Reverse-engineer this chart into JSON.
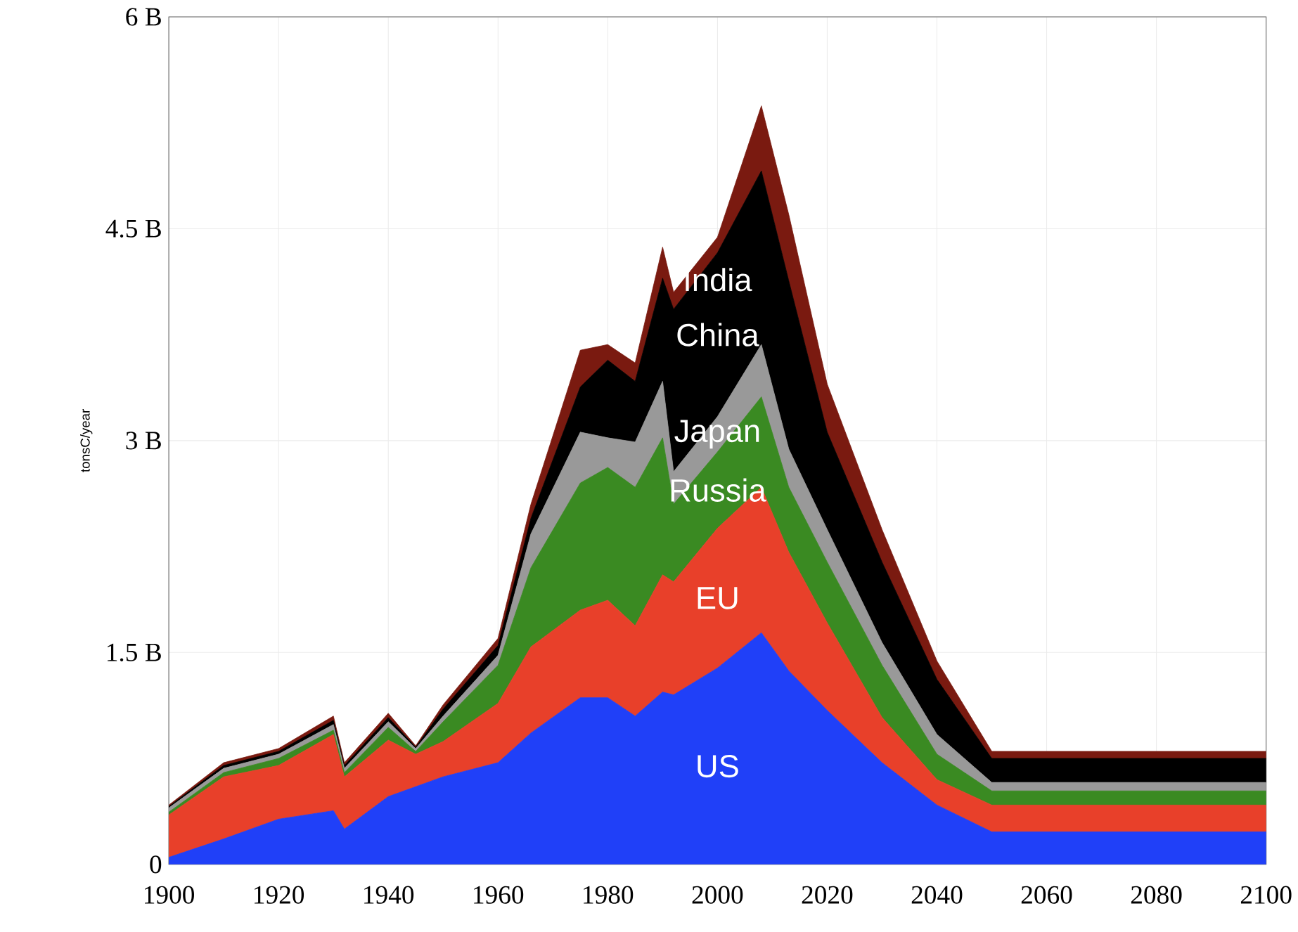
{
  "chart_data": {
    "type": "area",
    "stacked": true,
    "ylabel": "tonsC/year",
    "x": [
      1900,
      1910,
      1920,
      1930,
      1932,
      1940,
      1945,
      1950,
      1960,
      1966,
      1975,
      1980,
      1985,
      1990,
      1992,
      2000,
      2008,
      2013,
      2020,
      2030,
      2040,
      2050,
      2100
    ],
    "series": [
      {
        "name": "US",
        "color": "#2040f8",
        "values": [
          0.05,
          0.18,
          0.32,
          0.38,
          0.25,
          0.48,
          0.55,
          0.62,
          0.72,
          0.93,
          1.18,
          1.18,
          1.05,
          1.22,
          1.2,
          1.39,
          1.64,
          1.37,
          1.09,
          0.72,
          0.42,
          0.23,
          0.23
        ]
      },
      {
        "name": "EU",
        "color": "#e8402a",
        "values": [
          0.3,
          0.44,
          0.38,
          0.54,
          0.37,
          0.4,
          0.23,
          0.25,
          0.42,
          0.61,
          0.62,
          0.69,
          0.64,
          0.83,
          0.8,
          0.99,
          1.03,
          0.84,
          0.62,
          0.32,
          0.18,
          0.19,
          0.19
        ]
      },
      {
        "name": "Russia",
        "color": "#3a8a22",
        "values": [
          0.02,
          0.03,
          0.05,
          0.03,
          0.03,
          0.09,
          0.02,
          0.14,
          0.27,
          0.56,
          0.9,
          0.94,
          0.98,
          0.97,
          0.55,
          0.54,
          0.64,
          0.46,
          0.43,
          0.37,
          0.18,
          0.1,
          0.1
        ]
      },
      {
        "name": "Japan",
        "color": "#999999",
        "values": [
          0.03,
          0.03,
          0.03,
          0.04,
          0.03,
          0.04,
          0.02,
          0.04,
          0.07,
          0.24,
          0.36,
          0.21,
          0.32,
          0.4,
          0.23,
          0.25,
          0.37,
          0.27,
          0.23,
          0.16,
          0.14,
          0.06,
          0.06
        ]
      },
      {
        "name": "China",
        "color": "#000000",
        "values": [
          0.01,
          0.02,
          0.02,
          0.03,
          0.02,
          0.03,
          0.01,
          0.05,
          0.07,
          0.11,
          0.32,
          0.55,
          0.43,
          0.73,
          1.15,
          1.16,
          1.23,
          1.19,
          0.69,
          0.57,
          0.39,
          0.17,
          0.17
        ]
      },
      {
        "name": "India",
        "color": "#7a1a10",
        "values": [
          0.01,
          0.02,
          0.02,
          0.03,
          0.02,
          0.03,
          0.01,
          0.03,
          0.05,
          0.1,
          0.26,
          0.11,
          0.13,
          0.22,
          0.12,
          0.11,
          0.46,
          0.47,
          0.34,
          0.23,
          0.13,
          0.05,
          0.05
        ]
      }
    ],
    "xlim": [
      1900,
      2100
    ],
    "xticks": [
      1900,
      1920,
      1940,
      1960,
      1980,
      2000,
      2020,
      2040,
      2060,
      2080,
      2100
    ],
    "ylim": [
      0,
      6
    ],
    "yticks": [
      {
        "value": 0,
        "label": "0"
      },
      {
        "value": 1.5,
        "label": "1.5 B"
      },
      {
        "value": 3,
        "label": "3 B"
      },
      {
        "value": 4.5,
        "label": "4.5 B"
      },
      {
        "value": 6,
        "label": "6 B"
      }
    ],
    "grid": true,
    "legend": false
  }
}
